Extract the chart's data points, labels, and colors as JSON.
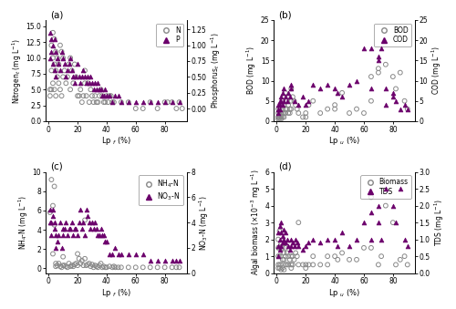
{
  "panel_a": {
    "title": "(a)",
    "xlabel": "Lp $_{f}$ (%)",
    "ylabel_left": "Nitrogen$_{t}$ (mg L$^{-1}$)",
    "ylabel_right": "Phosphorus$_{t}$ (mg L$^{-1}$)",
    "ylim_left": [
      0,
      16
    ],
    "ylim_right": [
      -0.2,
      1.4
    ],
    "xlim": [
      -2,
      95
    ],
    "N_x": [
      1,
      1,
      2,
      2,
      2,
      3,
      3,
      3,
      4,
      4,
      4,
      5,
      5,
      5,
      6,
      6,
      7,
      7,
      8,
      8,
      9,
      9,
      10,
      10,
      11,
      12,
      13,
      14,
      15,
      15,
      16,
      17,
      18,
      19,
      20,
      21,
      22,
      23,
      24,
      25,
      25,
      26,
      27,
      28,
      29,
      30,
      31,
      32,
      33,
      34,
      35,
      36,
      37,
      38,
      39,
      40,
      41,
      42,
      43,
      44,
      45,
      50,
      55,
      60,
      65,
      70,
      75,
      80,
      82,
      85,
      88,
      90,
      92
    ],
    "N_y": [
      5,
      4,
      12,
      8,
      5,
      14,
      10,
      6,
      13,
      9,
      5,
      11,
      8,
      4,
      10,
      7,
      9,
      6,
      12,
      5,
      11,
      4,
      10,
      7,
      8,
      6,
      7,
      9,
      10,
      5,
      8,
      6,
      9,
      7,
      4,
      4,
      5,
      3,
      4,
      8,
      6,
      4,
      6,
      3,
      5,
      4,
      3,
      4,
      3,
      3,
      4,
      5,
      4,
      3,
      3,
      4,
      3,
      4,
      4,
      3,
      3,
      3,
      3,
      2,
      2,
      3,
      2,
      3,
      3,
      3,
      2,
      3,
      2
    ],
    "P_x": [
      1,
      1,
      2,
      2,
      3,
      3,
      4,
      4,
      5,
      5,
      6,
      7,
      8,
      9,
      10,
      11,
      12,
      13,
      14,
      15,
      16,
      17,
      18,
      19,
      20,
      21,
      22,
      23,
      24,
      25,
      26,
      27,
      28,
      29,
      30,
      31,
      32,
      33,
      34,
      35,
      36,
      37,
      38,
      39,
      40,
      42,
      44,
      46,
      48,
      50,
      55,
      60,
      65,
      70,
      75,
      80,
      85,
      90
    ],
    "P_y": [
      1.2,
      0.8,
      1.1,
      0.9,
      1.0,
      0.7,
      1.1,
      0.6,
      0.9,
      0.5,
      0.8,
      0.7,
      0.6,
      0.9,
      0.8,
      0.7,
      0.5,
      0.6,
      0.7,
      0.8,
      0.6,
      0.5,
      0.4,
      0.5,
      0.7,
      0.5,
      0.4,
      0.5,
      0.6,
      0.5,
      0.4,
      0.5,
      0.4,
      0.5,
      0.4,
      0.3,
      0.4,
      0.3,
      0.4,
      0.3,
      0.3,
      0.2,
      0.2,
      0.3,
      0.2,
      0.2,
      0.1,
      0.2,
      0.2,
      0.1,
      0.1,
      0.1,
      0.1,
      0.1,
      0.1,
      0.1,
      0.1,
      0.1
    ]
  },
  "panel_b": {
    "title": "(b)",
    "xlabel": "Lp $_{u}$ (%)",
    "ylabel_left": "BOD (mg L$^{-1}$)",
    "ylabel_right": "COD (mg L$^{-1}$)",
    "ylim_left": [
      0,
      25
    ],
    "ylim_right": [
      0,
      25
    ],
    "xlim": [
      -2,
      95
    ],
    "BOD_x": [
      1,
      1,
      1,
      1,
      1,
      2,
      2,
      2,
      2,
      2,
      3,
      3,
      3,
      3,
      4,
      4,
      4,
      4,
      5,
      5,
      5,
      5,
      6,
      6,
      6,
      7,
      7,
      8,
      8,
      9,
      9,
      10,
      10,
      10,
      11,
      12,
      13,
      14,
      15,
      18,
      20,
      20,
      22,
      25,
      30,
      35,
      40,
      40,
      45,
      50,
      55,
      60,
      65,
      65,
      70,
      70,
      75,
      80,
      82,
      85,
      88,
      90
    ],
    "BOD_y": [
      1,
      2,
      3,
      1,
      0.5,
      2,
      3,
      1,
      0.5,
      1.5,
      4,
      2,
      1,
      0.5,
      5,
      3,
      1,
      2,
      6,
      4,
      2,
      1,
      7,
      3,
      2,
      5,
      3,
      4,
      2,
      3,
      2,
      8,
      5,
      3,
      6,
      5,
      4,
      3,
      2,
      1,
      1,
      2,
      4,
      5,
      2,
      3,
      3,
      4,
      7,
      2,
      3,
      2,
      11,
      5,
      12,
      13,
      14,
      11,
      8,
      12,
      5,
      3
    ],
    "COD_x": [
      1,
      1,
      1,
      2,
      2,
      2,
      3,
      3,
      4,
      4,
      5,
      5,
      6,
      7,
      8,
      9,
      10,
      10,
      12,
      15,
      18,
      20,
      22,
      25,
      30,
      35,
      40,
      42,
      45,
      50,
      55,
      60,
      65,
      65,
      70,
      70,
      72,
      75,
      75,
      80,
      80,
      82,
      85,
      88,
      90
    ],
    "COD_y": [
      2,
      3,
      4,
      4,
      5,
      3,
      6,
      5,
      7,
      4,
      8,
      5,
      6,
      5,
      7,
      6,
      8,
      9,
      5,
      4,
      6,
      4,
      5,
      9,
      8,
      9,
      8,
      7,
      6,
      9,
      10,
      18,
      18,
      8,
      15,
      16,
      18,
      8,
      4,
      7,
      6,
      5,
      3,
      4,
      3
    ]
  },
  "panel_c": {
    "title": "(c)",
    "xlabel": "Lp $_{f}$ (%)",
    "ylabel_left": "NH$_{4}$-N (mg L$^{-1}$)",
    "ylabel_right": "NO$_{3}$-N (mg L$^{-1}$)",
    "ylim_left": [
      -0.5,
      10
    ],
    "ylim_right": [
      0,
      8
    ],
    "xlim": [
      -2,
      95
    ],
    "NH4_x": [
      1,
      2,
      3,
      3,
      4,
      4,
      5,
      5,
      6,
      7,
      8,
      9,
      10,
      10,
      11,
      12,
      13,
      14,
      15,
      16,
      17,
      18,
      19,
      20,
      20,
      21,
      22,
      23,
      24,
      25,
      25,
      26,
      27,
      28,
      29,
      30,
      31,
      32,
      33,
      34,
      35,
      36,
      37,
      38,
      39,
      40,
      42,
      44,
      45,
      46,
      48,
      50,
      55,
      60,
      65,
      70,
      75,
      80,
      85,
      88,
      90
    ],
    "NH4_y": [
      5.8,
      9.2,
      6.5,
      1.5,
      8.5,
      4.5,
      0.5,
      0.2,
      0.3,
      0.5,
      0.2,
      0.1,
      1.2,
      0.3,
      0.3,
      0.2,
      0.1,
      0.5,
      0.2,
      0.3,
      0.2,
      0.4,
      0.5,
      0.3,
      1.5,
      1.0,
      0.5,
      0.8,
      0.3,
      5.0,
      1.0,
      0.3,
      0.4,
      0.5,
      0.2,
      0.4,
      0.1,
      0.3,
      0.2,
      0.1,
      0.3,
      0.5,
      0.1,
      0.2,
      0.1,
      0.1,
      0.2,
      0.1,
      0.2,
      0.1,
      0.1,
      0.1,
      0.1,
      0.1,
      0.1,
      0.1,
      0.1,
      0.1,
      0.1,
      0.1,
      0.1
    ],
    "NO3_x": [
      1,
      1,
      2,
      2,
      3,
      3,
      4,
      4,
      5,
      5,
      6,
      7,
      8,
      9,
      10,
      10,
      11,
      12,
      13,
      14,
      15,
      16,
      17,
      18,
      19,
      20,
      21,
      22,
      23,
      24,
      25,
      26,
      27,
      28,
      29,
      30,
      31,
      32,
      33,
      34,
      35,
      36,
      37,
      38,
      39,
      40,
      42,
      44,
      46,
      48,
      50,
      55,
      60,
      65,
      70,
      75,
      80,
      85,
      88,
      90
    ],
    "NO3_y": [
      4,
      5,
      3,
      4,
      4.5,
      5,
      3.5,
      4,
      2,
      3,
      2.5,
      3,
      4,
      2,
      3,
      3.5,
      3.5,
      4,
      3,
      3.5,
      3.5,
      4,
      3,
      3.5,
      3.5,
      3,
      4,
      5,
      3.5,
      4,
      3,
      5,
      4.5,
      4,
      3.5,
      4,
      3.5,
      4,
      3.5,
      3,
      3,
      3.5,
      3,
      3,
      2.5,
      2.5,
      1.5,
      1.5,
      2,
      1.5,
      1.5,
      1.5,
      1.5,
      1.5,
      1,
      1,
      1,
      1,
      1,
      1
    ]
  },
  "panel_d": {
    "title": "(d)",
    "xlabel": "Lp $_{u}$ (%)",
    "ylabel_left": "Algal biomass (×10$^{-3}$ mg L$^{-1}$)",
    "ylabel_right": "TDS (mg L$^{-1}$)",
    "ylim_left": [
      0,
      6
    ],
    "ylim_right": [
      0,
      3
    ],
    "xlim": [
      -2,
      95
    ],
    "Bio_x": [
      1,
      1,
      1,
      1,
      1,
      2,
      2,
      2,
      2,
      2,
      3,
      3,
      3,
      3,
      4,
      4,
      4,
      5,
      5,
      5,
      6,
      6,
      6,
      7,
      7,
      8,
      8,
      9,
      10,
      10,
      10,
      11,
      11,
      12,
      13,
      14,
      15,
      15,
      18,
      20,
      20,
      22,
      25,
      25,
      30,
      35,
      35,
      40,
      42,
      45,
      50,
      55,
      60,
      65,
      65,
      70,
      72,
      75,
      80,
      82,
      85,
      88,
      90
    ],
    "Bio_y": [
      0.3,
      0.5,
      1.0,
      1.5,
      2.0,
      0.3,
      0.5,
      1.0,
      1.5,
      2.5,
      0.2,
      0.5,
      1.0,
      1.8,
      0.3,
      0.8,
      1.5,
      0.2,
      0.8,
      1.2,
      0.5,
      1.0,
      1.5,
      0.5,
      1.2,
      0.5,
      1.0,
      0.8,
      0.3,
      0.5,
      1.0,
      0.5,
      1.0,
      0.8,
      1.2,
      1.0,
      0.5,
      3.0,
      0.5,
      0.3,
      0.5,
      0.5,
      0.5,
      1.0,
      0.5,
      0.5,
      1.0,
      1.0,
      0.8,
      1.2,
      0.8,
      0.8,
      1.5,
      1.5,
      4.5,
      0.5,
      1.0,
      4.0,
      3.0,
      0.5,
      0.8,
      1.0,
      0.5
    ],
    "TDS_x": [
      1,
      1,
      1,
      2,
      2,
      2,
      3,
      3,
      3,
      4,
      4,
      5,
      5,
      6,
      6,
      7,
      8,
      9,
      10,
      10,
      11,
      12,
      13,
      14,
      15,
      18,
      20,
      22,
      25,
      30,
      35,
      40,
      42,
      45,
      50,
      55,
      60,
      65,
      65,
      70,
      70,
      72,
      75,
      80,
      82,
      85,
      88,
      90
    ],
    "TDS_y": [
      0.5,
      0.8,
      1.2,
      0.7,
      1.0,
      1.4,
      0.8,
      1.2,
      1.5,
      0.9,
      1.1,
      1.0,
      1.3,
      0.9,
      1.2,
      1.0,
      0.8,
      0.7,
      0.8,
      1.0,
      0.9,
      0.8,
      1.0,
      0.9,
      0.8,
      0.7,
      0.8,
      0.9,
      1.0,
      0.9,
      1.0,
      1.0,
      0.8,
      1.2,
      0.8,
      1.0,
      1.5,
      1.8,
      1.0,
      1.5,
      2.0,
      1.0,
      2.5,
      2.0,
      1.5,
      2.5,
      1.0,
      0.8
    ]
  },
  "open_color": "#888888",
  "fill_color": "#6B006B",
  "fig_bgcolor": "#ffffff",
  "legend_a": [
    "N",
    "P"
  ],
  "legend_b": [
    "BOD",
    "COD"
  ],
  "legend_c_1": "NH$_{4}$-N",
  "legend_c_2": "NO$_{3}$-N",
  "legend_d": [
    "Biomass",
    "TDS"
  ]
}
